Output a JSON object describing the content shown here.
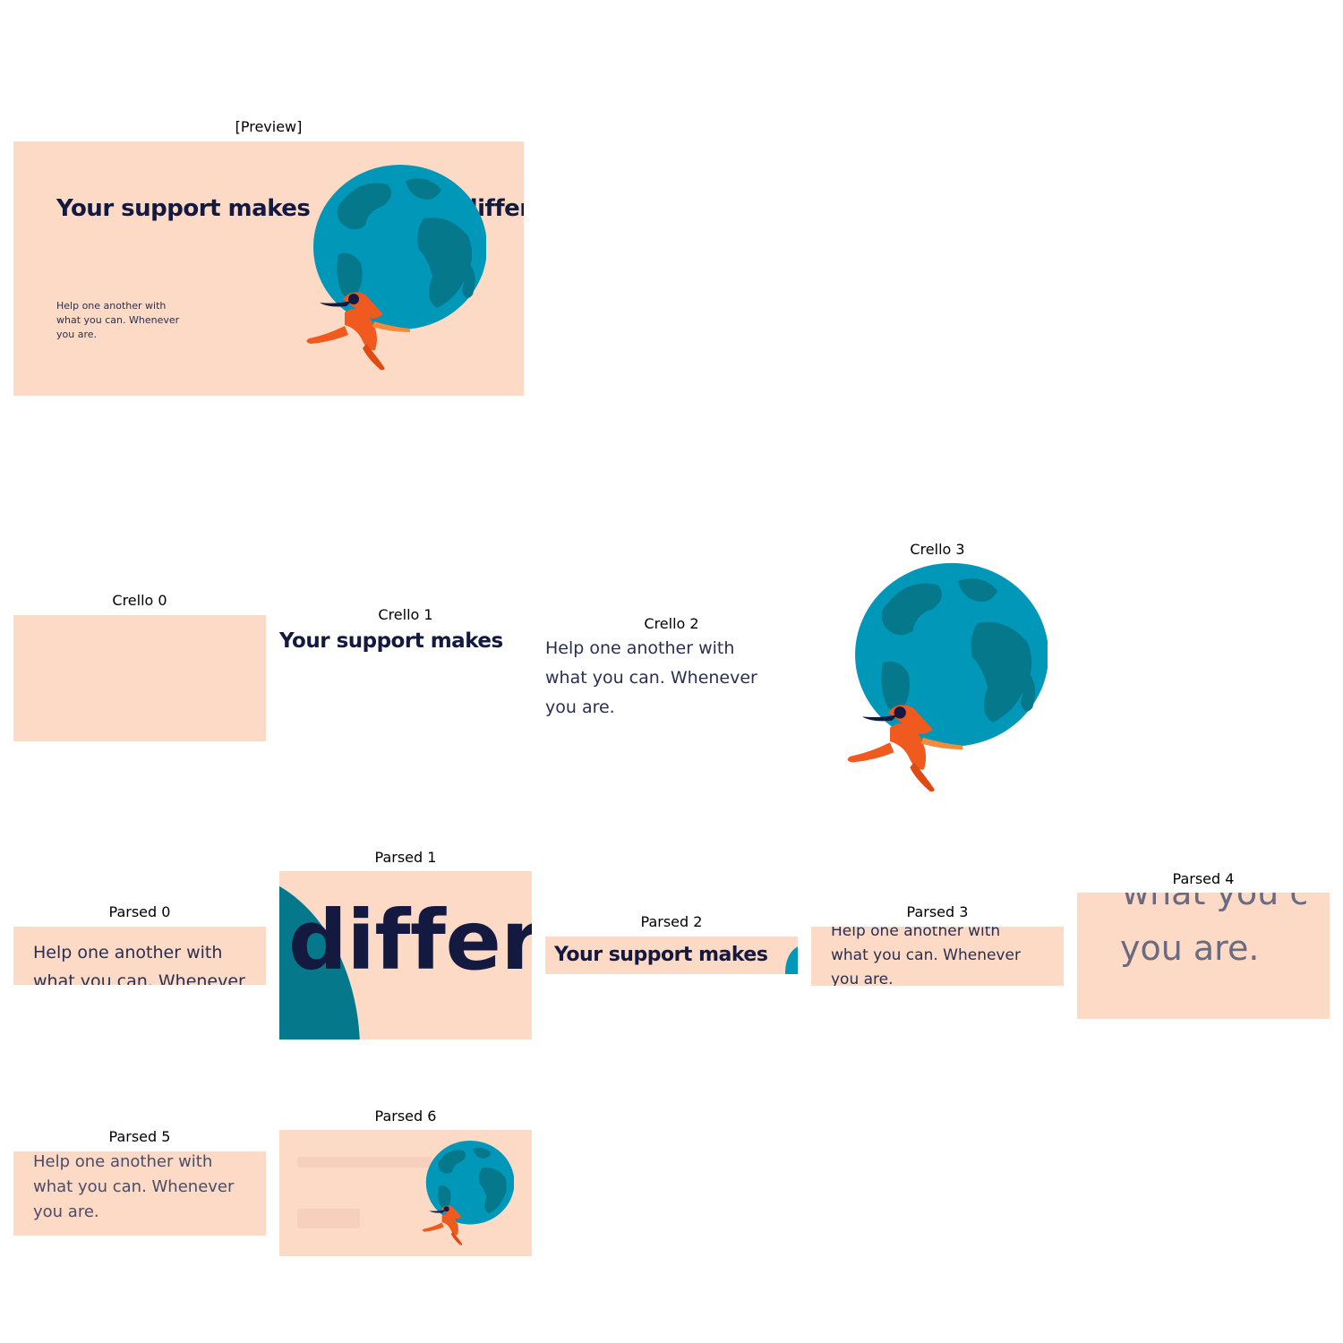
{
  "labels": {
    "preview": "[Preview]",
    "crello0": "Crello 0",
    "crello1": "Crello 1",
    "crello2": "Crello 2",
    "crello3": "Crello 3",
    "parsed0": "Parsed 0",
    "parsed1": "Parsed 1",
    "parsed2": "Parsed 2",
    "parsed3": "Parsed 3",
    "parsed4": "Parsed 4",
    "parsed5": "Parsed 5",
    "parsed6": "Parsed 6"
  },
  "design": {
    "headline": "Your support makes",
    "headline_tail": "differ",
    "body": "Help one another with\nwhat you can. Whenever\nyou are.",
    "body_line1": "Help one another with",
    "body_line2": "what you can. Whenever",
    "body_line3": "you are.",
    "fragment_differ": "differ",
    "fragment_what": "what you c",
    "fragment_you_are": "you are."
  },
  "colors": {
    "background": "#fcdac6",
    "headline": "#14193f",
    "globe_ocean": "#0097b8",
    "globe_land": "#05788c",
    "figure": "#f05a1e"
  },
  "icons": {
    "globe": "globe-with-runner-illustration"
  }
}
